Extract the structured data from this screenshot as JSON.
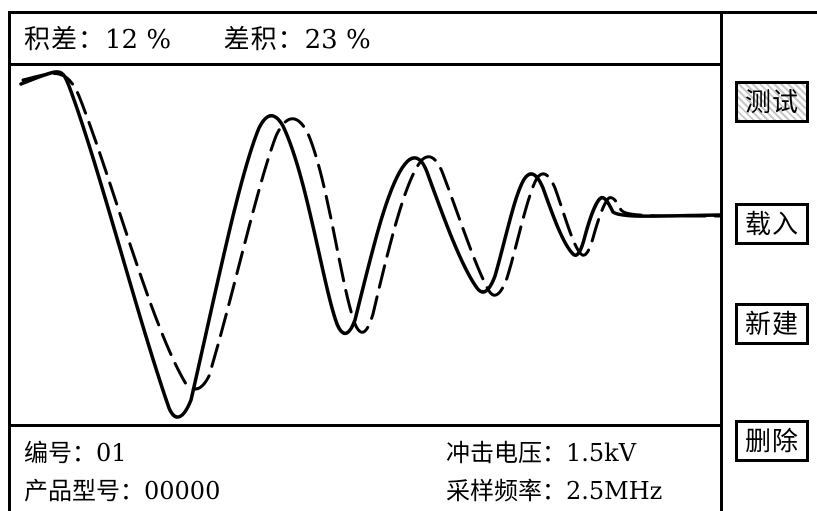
{
  "status_bar": {
    "integral_diff_label": "积差：",
    "integral_diff_value": "12",
    "integral_diff_unit": "%",
    "diff_integral_label": "差积：",
    "diff_integral_value": "23",
    "diff_integral_unit": "%"
  },
  "info": {
    "serial_label": "编号：",
    "serial_value": "01",
    "model_label": "产品型号：",
    "model_value": "00000",
    "voltage_label": "冲击电压：",
    "voltage_value": "1.5kV",
    "sampling_label": "采样频率：",
    "sampling_value": "2.5MHz"
  },
  "buttons": {
    "test": "测试",
    "load": "载入",
    "new": "新建",
    "delete": "删除"
  },
  "colors": {
    "line": "#000000",
    "background": "#ffffff",
    "active_hatch": "#c8c8c8"
  }
}
